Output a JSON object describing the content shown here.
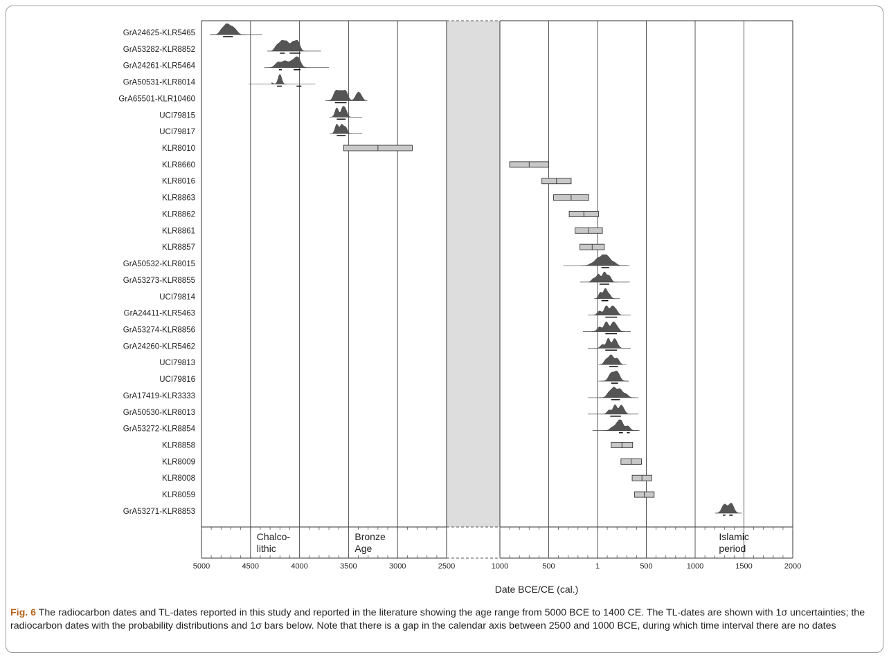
{
  "chart_data": {
    "type": "range-plot",
    "xlabel": "Date BCE/CE (cal.)",
    "x_axis": {
      "segments": [
        {
          "start": -5000,
          "end": -2500
        },
        {
          "start": -1000,
          "end": 2000
        }
      ],
      "gap": [
        -2500,
        -1000
      ],
      "tick_labels": [
        "5000",
        "4500",
        "4000",
        "3500",
        "3000",
        "2500",
        "1000",
        "500",
        "1",
        "500",
        "1000",
        "1500",
        "2000"
      ],
      "tick_values": [
        -5000,
        -4500,
        -4000,
        -3500,
        -3000,
        -2500,
        -1000,
        -500,
        1,
        500,
        1000,
        1500,
        2000
      ],
      "major_grid": [
        -4500,
        -4000,
        -3500,
        -3000,
        1000,
        -500,
        1,
        500,
        1500
      ]
    },
    "periods": [
      {
        "label": "Chalco-\nlithic",
        "x": -4500
      },
      {
        "label": "Bronze\nAge",
        "x": -3500
      },
      {
        "label": "Islamic\nperiod",
        "x": 1180
      }
    ],
    "samples": [
      {
        "label": "GrA24625-KLR5465",
        "kind": "c14",
        "start": -4840,
        "end": -4620,
        "peaks": [
          [
            -4790,
            0.5
          ],
          [
            -4740,
            0.95
          ],
          [
            -4690,
            0.6
          ],
          [
            -4650,
            0.35
          ]
        ],
        "tail": [
          -4900,
          -4380
        ],
        "bars": [
          [
            -4780,
            -4680
          ]
        ]
      },
      {
        "label": "GrA53282-KLR8852",
        "kind": "c14",
        "start": -4250,
        "end": -3990,
        "peaks": [
          [
            -4230,
            0.55
          ],
          [
            -4180,
            0.9
          ],
          [
            -4130,
            0.85
          ],
          [
            -4070,
            0.8
          ],
          [
            -4020,
            0.95
          ]
        ],
        "tail": [
          -4330,
          -3780
        ],
        "bars": [
          [
            -4200,
            -4150
          ],
          [
            -4100,
            -3990
          ]
        ]
      },
      {
        "label": "GrA24261-KLR5464",
        "kind": "c14",
        "start": -4240,
        "end": -3980,
        "peaks": [
          [
            -4220,
            0.5
          ],
          [
            -4150,
            0.6
          ],
          [
            -4080,
            0.55
          ],
          [
            -4020,
            1.0
          ]
        ],
        "tail": [
          -4360,
          -3700
        ],
        "bars": [
          [
            -4210,
            -4180
          ],
          [
            -4060,
            -3990
          ]
        ]
      },
      {
        "label": "GrA50531-KLR8014",
        "kind": "c14",
        "start": -4230,
        "end": -4180,
        "peaks": [
          [
            -4290,
            0.15
          ],
          [
            -4200,
            0.95
          ]
        ],
        "tail": [
          -4520,
          -3840
        ],
        "bars": [
          [
            -4230,
            -4180
          ],
          [
            -4030,
            -3980
          ]
        ]
      },
      {
        "label": "GrA65501-KLR10460",
        "kind": "c14",
        "start": -3640,
        "end": -3380,
        "peaks": [
          [
            -3630,
            0.9
          ],
          [
            -3580,
            0.8
          ],
          [
            -3530,
            0.9
          ],
          [
            -3410,
            0.55
          ],
          [
            -3380,
            0.45
          ]
        ],
        "tail": [
          -3740,
          -3340
        ],
        "bars": [
          [
            -3640,
            -3520
          ]
        ]
      },
      {
        "label": "UCI79815",
        "kind": "c14",
        "start": -3640,
        "end": -3520,
        "peaks": [
          [
            -3620,
            0.9
          ],
          [
            -3560,
            0.85
          ],
          [
            -3530,
            0.6
          ]
        ],
        "tail": [
          -3640,
          -3360
        ],
        "bars": [
          [
            -3620,
            -3530
          ]
        ]
      },
      {
        "label": "UCI79817",
        "kind": "c14",
        "start": -3640,
        "end": -3520,
        "peaks": [
          [
            -3620,
            0.9
          ],
          [
            -3570,
            0.85
          ],
          [
            -3530,
            0.6
          ],
          [
            -3390,
            0.08
          ]
        ],
        "tail": [
          -3640,
          -3360
        ],
        "bars": [
          [
            -3620,
            -3530
          ]
        ]
      },
      {
        "label": "KLR8010",
        "kind": "tl",
        "start": -3550,
        "end": -2850,
        "center": -3200
      },
      {
        "label": "KLR8660",
        "kind": "tl",
        "start": -900,
        "end": -500,
        "center": -700
      },
      {
        "label": "KLR8016",
        "kind": "tl",
        "start": -570,
        "end": -270,
        "center": -420
      },
      {
        "label": "KLR8863",
        "kind": "tl",
        "start": -450,
        "end": -90,
        "center": -270
      },
      {
        "label": "KLR8862",
        "kind": "tl",
        "start": -290,
        "end": 10,
        "center": -140
      },
      {
        "label": "KLR8861",
        "kind": "tl",
        "start": -230,
        "end": 50,
        "center": -90
      },
      {
        "label": "KLR8857",
        "kind": "tl",
        "start": -180,
        "end": 70,
        "center": -55
      },
      {
        "label": "GrA50532-KLR8015",
        "kind": "c14",
        "start": -80,
        "end": 220,
        "peaks": [
          [
            -60,
            0.2
          ],
          [
            0,
            0.65
          ],
          [
            60,
            0.95
          ],
          [
            110,
            0.7
          ],
          [
            170,
            0.3
          ]
        ],
        "tail": [
          -350,
          330
        ],
        "bars": [
          [
            40,
            120
          ]
        ]
      },
      {
        "label": "GrA53273-KLR8855",
        "kind": "c14",
        "start": -40,
        "end": 140,
        "peaks": [
          [
            -40,
            0.35
          ],
          [
            10,
            0.75
          ],
          [
            70,
            0.95
          ],
          [
            120,
            0.6
          ]
        ],
        "tail": [
          -180,
          330
        ],
        "bars": [
          [
            20,
            120
          ]
        ]
      },
      {
        "label": "UCI79814",
        "kind": "c14",
        "start": 20,
        "end": 140,
        "peaks": [
          [
            30,
            0.6
          ],
          [
            80,
            0.95
          ],
          [
            120,
            0.4
          ]
        ],
        "tail": [
          -10,
          230
        ],
        "bars": [
          [
            40,
            110
          ]
        ]
      },
      {
        "label": "GrA24411-KLR5463",
        "kind": "c14",
        "start": 10,
        "end": 200,
        "peaks": [
          [
            20,
            0.4
          ],
          [
            90,
            0.9
          ],
          [
            150,
            0.8
          ],
          [
            190,
            0.45
          ]
        ],
        "tail": [
          -100,
          340
        ],
        "bars": [
          [
            80,
            200
          ]
        ]
      },
      {
        "label": "GrA53274-KLR8856",
        "kind": "c14",
        "start": 10,
        "end": 210,
        "peaks": [
          [
            20,
            0.45
          ],
          [
            90,
            0.95
          ],
          [
            160,
            0.85
          ],
          [
            200,
            0.4
          ]
        ],
        "tail": [
          -150,
          340
        ],
        "bars": [
          [
            80,
            200
          ]
        ]
      },
      {
        "label": "GrA24260-KLR5462",
        "kind": "c14",
        "start": 40,
        "end": 210,
        "peaks": [
          [
            50,
            0.35
          ],
          [
            110,
            0.95
          ],
          [
            170,
            0.8
          ],
          [
            200,
            0.35
          ]
        ],
        "tail": [
          -100,
          340
        ],
        "bars": [
          [
            80,
            200
          ]
        ]
      },
      {
        "label": "UCI79813",
        "kind": "c14",
        "start": 80,
        "end": 230,
        "peaks": [
          [
            90,
            0.5
          ],
          [
            140,
            0.9
          ],
          [
            200,
            0.6
          ]
        ],
        "tail": [
          50,
          260
        ],
        "bars": [
          [
            120,
            210
          ]
        ]
      },
      {
        "label": "UCI79816",
        "kind": "c14",
        "start": 120,
        "end": 240,
        "peaks": [
          [
            140,
            0.75
          ],
          [
            200,
            0.9
          ]
        ],
        "tail": [
          10,
          310
        ],
        "bars": [
          [
            140,
            210
          ]
        ]
      },
      {
        "label": "GrA17419-KLR3333",
        "kind": "c14",
        "start": 90,
        "end": 310,
        "peaks": [
          [
            120,
            0.5
          ],
          [
            170,
            0.9
          ],
          [
            230,
            0.8
          ],
          [
            290,
            0.35
          ]
        ],
        "tail": [
          -100,
          420
        ],
        "bars": [
          [
            140,
            230
          ]
        ]
      },
      {
        "label": "GrA50530-KLR8013",
        "kind": "c14",
        "start": 100,
        "end": 280,
        "peaks": [
          [
            120,
            0.4
          ],
          [
            180,
            0.9
          ],
          [
            240,
            0.75
          ],
          [
            270,
            0.3
          ]
        ],
        "tail": [
          -100,
          420
        ],
        "bars": [
          [
            130,
            240
          ]
        ]
      },
      {
        "label": "GrA53272-KLR8854",
        "kind": "c14",
        "start": 130,
        "end": 340,
        "peaks": [
          [
            150,
            0.3
          ],
          [
            200,
            0.55
          ],
          [
            240,
            0.9
          ],
          [
            310,
            0.45
          ]
        ],
        "tail": [
          -50,
          430
        ],
        "bars": [
          [
            220,
            260
          ],
          [
            300,
            330
          ]
        ]
      },
      {
        "label": "KLR8858",
        "kind": "tl",
        "start": 140,
        "end": 360,
        "center": 250
      },
      {
        "label": "KLR8009",
        "kind": "tl",
        "start": 240,
        "end": 450,
        "center": 345
      },
      {
        "label": "KLR8008",
        "kind": "tl",
        "start": 355,
        "end": 555,
        "center": 455
      },
      {
        "label": "KLR8059",
        "kind": "tl",
        "start": 380,
        "end": 580,
        "center": 480
      },
      {
        "label": "GrA53271-KLR8853",
        "kind": "c14",
        "start": 1285,
        "end": 1400,
        "peaks": [
          [
            1300,
            0.85
          ],
          [
            1370,
            0.95
          ]
        ],
        "tail": [
          1210,
          1460
        ],
        "bars": [
          [
            1285,
            1310
          ],
          [
            1350,
            1385
          ]
        ]
      }
    ]
  },
  "caption": {
    "lead": "Fig. 6",
    "text": "  The radiocarbon dates and TL-dates reported in this study and reported in the literature showing the age range from 5000 BCE to 1400 CE. The TL-dates are shown with 1σ uncertainties; the radiocarbon dates with the probability distributions and 1σ bars below. Note that there is a gap in the calendar axis between 2500 and 1000 BCE, during which time interval there are no dates"
  }
}
